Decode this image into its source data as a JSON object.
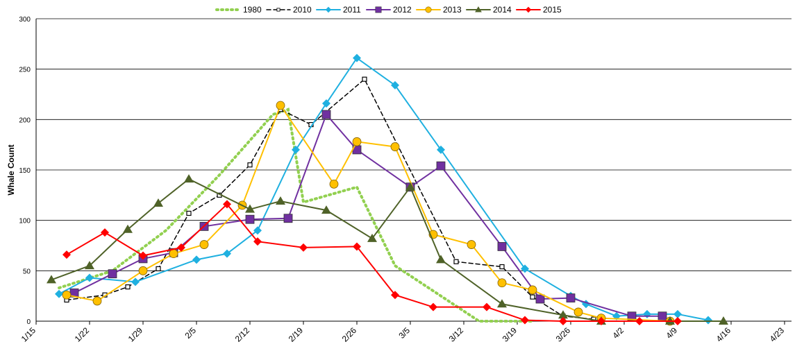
{
  "chart_data": {
    "type": "line",
    "y_label": "Whale Count",
    "xlim": [
      15,
      113
    ],
    "xticks": [
      {
        "value": 15,
        "label": "1/15"
      },
      {
        "value": 22,
        "label": "1/22"
      },
      {
        "value": 29,
        "label": "1/29"
      },
      {
        "value": 36,
        "label": "2/5"
      },
      {
        "value": 43,
        "label": "2/12"
      },
      {
        "value": 50,
        "label": "2/19"
      },
      {
        "value": 57,
        "label": "2/26"
      },
      {
        "value": 64,
        "label": "3/5"
      },
      {
        "value": 71,
        "label": "3/12"
      },
      {
        "value": 78,
        "label": "3/19"
      },
      {
        "value": 85,
        "label": "3/26"
      },
      {
        "value": 92,
        "label": "4/2"
      },
      {
        "value": 99,
        "label": "4/9"
      },
      {
        "value": 106,
        "label": "4/16"
      },
      {
        "value": 113,
        "label": "4/23"
      }
    ],
    "ylim": [
      0,
      300
    ],
    "yticks": [
      0,
      50,
      100,
      150,
      200,
      250,
      300
    ],
    "grid": true,
    "legend": "top",
    "series": [
      {
        "name": "1980",
        "color": "#92d050",
        "style": "dotted",
        "marker": "none",
        "x": [
          18,
          25,
          32,
          39,
          46,
          48,
          50,
          57,
          62,
          73,
          80
        ],
        "values": [
          33,
          50,
          90,
          145,
          205,
          210,
          118,
          133,
          55,
          0,
          0
        ]
      },
      {
        "name": "2010",
        "color": "#000000",
        "style": "dashed",
        "marker": "open-square",
        "x": [
          19,
          24,
          27,
          31,
          35,
          39,
          43,
          47,
          51,
          58,
          70,
          76,
          80,
          84,
          88
        ],
        "values": [
          21,
          26,
          34,
          52,
          107,
          125,
          155,
          210,
          195,
          240,
          59,
          54,
          24,
          5,
          2
        ]
      },
      {
        "name": "2011",
        "color": "#1fb0e0",
        "style": "solid",
        "marker": "diamond",
        "x": [
          18,
          22,
          28,
          36,
          40,
          44,
          49,
          53,
          57,
          62,
          68,
          79,
          85,
          87,
          91,
          95,
          99,
          103
        ],
        "values": [
          27,
          43,
          39,
          61,
          67,
          90,
          170,
          216,
          261,
          234,
          170,
          52,
          25,
          17,
          5,
          7,
          7,
          1
        ]
      },
      {
        "name": "2012",
        "color": "#7030a0",
        "style": "solid",
        "marker": "square",
        "x": [
          20,
          25,
          29,
          33,
          37,
          43,
          48,
          53,
          57,
          64,
          68,
          76,
          81,
          85,
          93,
          97
        ],
        "values": [
          28,
          47,
          62,
          68,
          94,
          101,
          102,
          205,
          170,
          133,
          154,
          74,
          22,
          23,
          5,
          5
        ]
      },
      {
        "name": "2013",
        "color": "#ffc000",
        "style": "solid",
        "marker": "circle",
        "x": [
          19,
          23,
          29,
          33,
          37,
          42,
          47,
          54,
          57,
          62,
          67,
          72,
          76,
          80,
          86,
          89,
          98
        ],
        "values": [
          26,
          20,
          50,
          67,
          76,
          115,
          214,
          136,
          178,
          173,
          86,
          76,
          38,
          31,
          9,
          3,
          0
        ]
      },
      {
        "name": "2014",
        "color": "#4f6228",
        "style": "solid",
        "marker": "triangle",
        "x": [
          17,
          22,
          27,
          31,
          35,
          43,
          47,
          53,
          59,
          64,
          68,
          76,
          84,
          89,
          98,
          105
        ],
        "values": [
          41,
          55,
          91,
          117,
          141,
          111,
          119,
          110,
          82,
          133,
          61,
          17,
          6,
          0,
          0,
          0
        ]
      },
      {
        "name": "2015",
        "color": "#ff0000",
        "style": "solid",
        "marker": "diamond",
        "x": [
          19,
          24,
          29,
          34,
          40,
          44,
          50,
          57,
          62,
          67,
          74,
          79,
          84,
          89,
          94,
          99
        ],
        "values": [
          66,
          88,
          65,
          73,
          116,
          79,
          73,
          74,
          26,
          14,
          14,
          1,
          0,
          0,
          0,
          0
        ]
      }
    ]
  }
}
